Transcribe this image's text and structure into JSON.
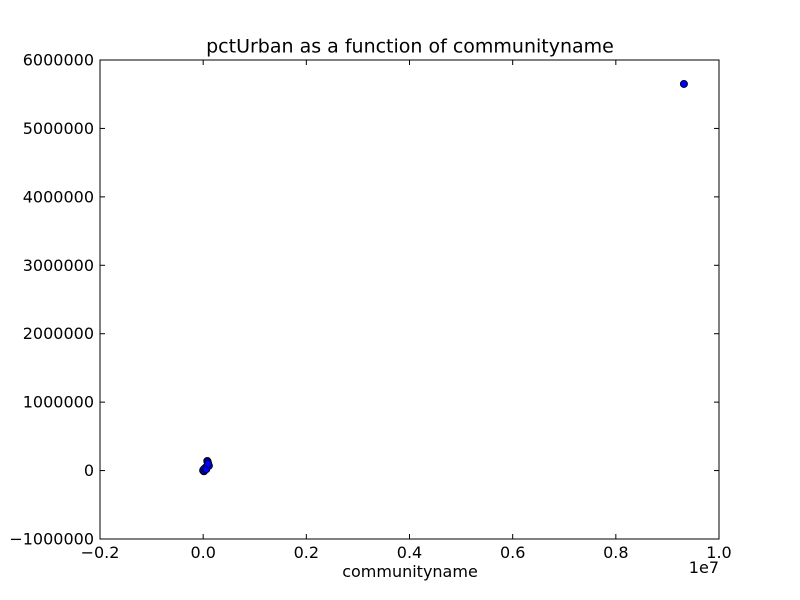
{
  "chart_data": {
    "type": "scatter",
    "title": "pctUrban as a function of communityname",
    "xlabel": "communityname",
    "ylabel": "",
    "x_offset_label": "1e7",
    "xlim": [
      -2000000,
      10000000
    ],
    "ylim": [
      -1000000,
      6000000
    ],
    "x_ticks": [
      -2000000,
      0,
      2000000,
      4000000,
      6000000,
      8000000,
      10000000
    ],
    "x_tick_labels": [
      "−0.2",
      "0.0",
      "0.2",
      "0.4",
      "0.6",
      "0.8",
      "1.0"
    ],
    "y_ticks": [
      -1000000,
      0,
      1000000,
      2000000,
      3000000,
      4000000,
      5000000,
      6000000
    ],
    "y_tick_labels": [
      "−1000000",
      "0",
      "1000000",
      "2000000",
      "3000000",
      "4000000",
      "5000000",
      "6000000"
    ],
    "grid": false,
    "marker_color": "#0000ff",
    "marker_edge_color": "#000000",
    "points": [
      {
        "x": 9320000,
        "y": 5650000
      },
      {
        "x": 0,
        "y": 0
      },
      {
        "x": 10000,
        "y": 5000
      },
      {
        "x": 20000,
        "y": 15000
      },
      {
        "x": 30000,
        "y": 20000
      },
      {
        "x": 40000,
        "y": 30000
      },
      {
        "x": 50000,
        "y": 40000
      },
      {
        "x": 60000,
        "y": 50000
      },
      {
        "x": 70000,
        "y": 60000
      },
      {
        "x": 80000,
        "y": 70000
      },
      {
        "x": 90000,
        "y": 80000
      },
      {
        "x": 100000,
        "y": 90000
      },
      {
        "x": 110000,
        "y": 70000
      },
      {
        "x": 80000,
        "y": 140000
      },
      {
        "x": 90000,
        "y": 120000
      },
      {
        "x": 15000,
        "y": -10000
      },
      {
        "x": 5000,
        "y": 10000
      },
      {
        "x": 25000,
        "y": 30000
      },
      {
        "x": 60000,
        "y": 20000
      },
      {
        "x": 95000,
        "y": 100000
      }
    ]
  }
}
